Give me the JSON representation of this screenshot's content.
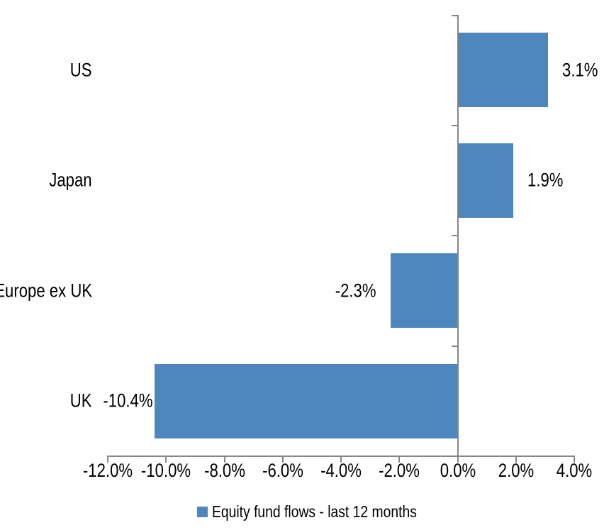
{
  "chart_data": {
    "type": "bar",
    "orientation": "horizontal",
    "title": "",
    "xlabel": "",
    "ylabel": "",
    "categories": [
      "US",
      "Japan",
      "Europe ex UK",
      "UK"
    ],
    "series": [
      {
        "name": "Equity fund flows - last 12 months",
        "values": [
          3.1,
          1.9,
          -2.3,
          -10.4
        ],
        "value_labels": [
          "3.1%",
          "1.9%",
          "-2.3%",
          "-10.4%"
        ],
        "color": "#4E87BE"
      }
    ],
    "xlim": [
      -12,
      4
    ],
    "x_tick_values": [
      -12,
      -10,
      -8,
      -6,
      -4,
      -2,
      0,
      2,
      4
    ],
    "x_tick_labels": [
      "-12.0%",
      "-10.0%",
      "-8.0%",
      "-6.0%",
      "-4.0%",
      "-2.0%",
      "0.0%",
      "2.0%",
      "4.0%"
    ],
    "grid": false,
    "legend_position": "bottom",
    "axis_color": "#868686",
    "text_color": "#000000",
    "background_color": "#FFFFFF"
  },
  "legend": {
    "label": "Equity fund flows - last 12 months",
    "swatch_color": "#4E87BE"
  }
}
